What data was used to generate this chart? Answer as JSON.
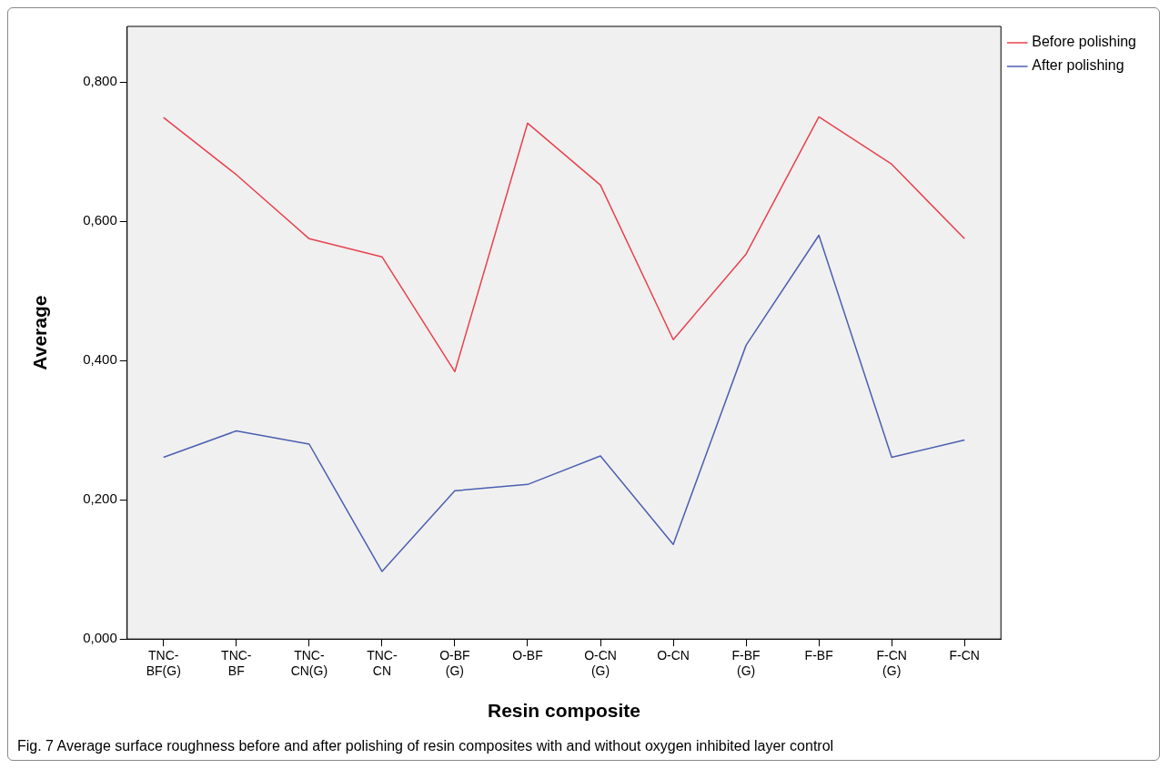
{
  "chart_data": {
    "type": "line",
    "xlabel": "Resin composite",
    "ylabel": "Average",
    "categories": [
      "TNC-BF(G)",
      "TNC-BF",
      "TNC-CN(G)",
      "TNC-CN",
      "O-BF(G)",
      "O-BF",
      "O-CN(G)",
      "O-CN",
      "F-BF(G)",
      "F-BF",
      "F-CN(G)",
      "F-CN"
    ],
    "series": [
      {
        "name": "Before polishing",
        "color": "#e8414e",
        "values": [
          0.749,
          0.667,
          0.575,
          0.549,
          0.384,
          0.741,
          0.652,
          0.43,
          0.553,
          0.75,
          0.682,
          0.575
        ]
      },
      {
        "name": "After polishing",
        "color": "#4c5fb0",
        "values": [
          0.261,
          0.299,
          0.28,
          0.097,
          0.213,
          0.222,
          0.263,
          0.136,
          0.422,
          0.58,
          0.261,
          0.286
        ]
      }
    ],
    "ylim": [
      0,
      0.88
    ],
    "yticks": [
      {
        "value": 0,
        "label": "0,000"
      },
      {
        "value": 0.2,
        "label": "0,200"
      },
      {
        "value": 0.4,
        "label": "0,400"
      },
      {
        "value": 0.6,
        "label": "0,600"
      },
      {
        "value": 0.8,
        "label": "0,800"
      }
    ],
    "grid": false,
    "legend": "top right",
    "marker": "none",
    "line_style": "solid",
    "annotations": [
      "Fig. 7  Average surface roughness before and after polishing of resin composites with and without oxygen inhibited layer control"
    ]
  }
}
